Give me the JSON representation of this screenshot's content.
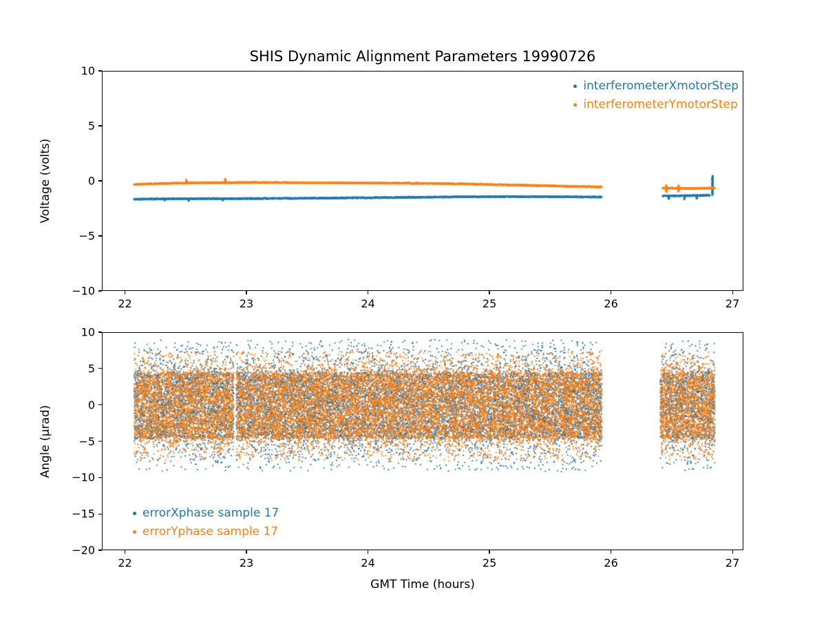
{
  "figure": {
    "background": "#ffffff",
    "axis_color": "#000000"
  },
  "chart_data": [
    {
      "type": "scatter",
      "title": "SHIS Dynamic Alignment Parameters 19990726",
      "xlabel": "",
      "ylabel": "Voltage (volts)",
      "xlim": [
        21.81,
        27.09
      ],
      "ylim": [
        -10,
        10
      ],
      "xticks": [
        22,
        23,
        24,
        25,
        26,
        27
      ],
      "yticks": [
        -10,
        -5,
        0,
        5,
        10
      ],
      "grid": false,
      "legend_position": "upper right",
      "series": [
        {
          "name": "interferometerXmotorStep",
          "color": "#1f77b4",
          "style": "dense-line",
          "segments": [
            [
              [
                22.07,
                -1.6
              ],
              [
                22.3,
                -1.57
              ],
              [
                22.6,
                -1.55
              ],
              [
                22.9,
                -1.55
              ],
              [
                23.2,
                -1.53
              ],
              [
                23.6,
                -1.5
              ],
              [
                24.0,
                -1.46
              ],
              [
                24.4,
                -1.42
              ],
              [
                24.8,
                -1.38
              ],
              [
                25.2,
                -1.37
              ],
              [
                25.6,
                -1.38
              ],
              [
                25.92,
                -1.4
              ]
            ],
            [
              [
                26.42,
                -1.3
              ],
              [
                26.6,
                -1.28
              ],
              [
                26.78,
                -1.25
              ],
              [
                26.81,
                -1.22
              ]
            ]
          ],
          "spikes": [
            {
              "x": 22.32,
              "y1": -1.72,
              "y2": -1.55
            },
            {
              "x": 22.52,
              "y1": -1.75,
              "y2": -1.52
            },
            {
              "x": 22.8,
              "y1": -1.72,
              "y2": -1.52
            },
            {
              "x": 26.47,
              "y1": -1.58,
              "y2": -1.25
            },
            {
              "x": 26.6,
              "y1": -1.62,
              "y2": -1.25
            },
            {
              "x": 26.7,
              "y1": -1.55,
              "y2": -1.25
            },
            {
              "x": 26.83,
              "y1": -1.22,
              "y2": 0.55
            }
          ]
        },
        {
          "name": "interferometerYmotorStep",
          "color": "#ff7f0e",
          "style": "dense-line",
          "segments": [
            [
              [
                22.07,
                -0.25
              ],
              [
                22.3,
                -0.18
              ],
              [
                22.55,
                -0.12
              ],
              [
                22.8,
                -0.1
              ],
              [
                23.0,
                -0.08
              ],
              [
                23.4,
                -0.1
              ],
              [
                23.8,
                -0.12
              ],
              [
                24.2,
                -0.14
              ],
              [
                24.6,
                -0.18
              ],
              [
                25.0,
                -0.26
              ],
              [
                25.4,
                -0.36
              ],
              [
                25.7,
                -0.44
              ],
              [
                25.92,
                -0.48
              ]
            ],
            [
              [
                26.42,
                -0.6
              ],
              [
                26.65,
                -0.62
              ],
              [
                26.85,
                -0.58
              ]
            ]
          ],
          "spikes": [
            {
              "x": 22.5,
              "y1": -0.2,
              "y2": 0.18
            },
            {
              "x": 22.82,
              "y1": -0.18,
              "y2": 0.24
            },
            {
              "x": 26.45,
              "y1": -0.95,
              "y2": -0.3
            },
            {
              "x": 26.55,
              "y1": -0.9,
              "y2": -0.35
            }
          ]
        }
      ]
    },
    {
      "type": "scatter",
      "title": "",
      "xlabel": "GMT Time (hours)",
      "ylabel": "Angle (µrad)",
      "xlim": [
        21.81,
        27.09
      ],
      "ylim": [
        -20,
        10
      ],
      "xticks": [
        22,
        23,
        24,
        25,
        26,
        27
      ],
      "yticks": [
        -20,
        -15,
        -10,
        -5,
        0,
        5,
        10
      ],
      "grid": false,
      "legend_position": "lower left",
      "series": [
        {
          "name": "errorXphase sample 17",
          "color": "#1f77b4",
          "style": "noise",
          "x_segments": [
            [
              22.07,
              22.89
            ],
            [
              22.91,
              25.92
            ],
            [
              26.4,
              26.85
            ]
          ],
          "y_dense_band": 4.4,
          "y_max": 9.0,
          "n_points": 15000
        },
        {
          "name": "errorYphase sample 17",
          "color": "#ff7f0e",
          "style": "noise",
          "x_segments": [
            [
              22.07,
              22.89
            ],
            [
              22.91,
              25.92
            ],
            [
              26.4,
              26.85
            ]
          ],
          "y_dense_band": 4.4,
          "y_max": 7.5,
          "n_points": 17000
        }
      ]
    }
  ]
}
